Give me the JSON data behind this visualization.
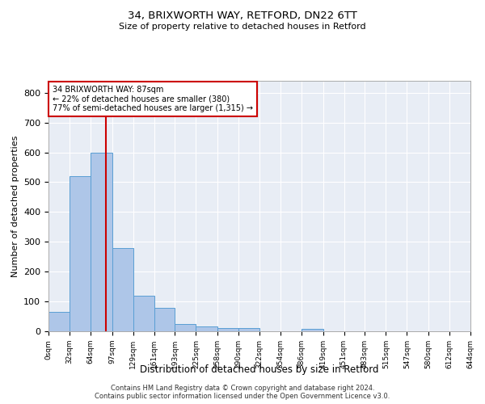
{
  "title1": "34, BRIXWORTH WAY, RETFORD, DN22 6TT",
  "title2": "Size of property relative to detached houses in Retford",
  "xlabel": "Distribution of detached houses by size in Retford",
  "ylabel": "Number of detached properties",
  "bin_edges": [
    0,
    32,
    64,
    97,
    129,
    161,
    193,
    225,
    258,
    290,
    322,
    354,
    386,
    419,
    451,
    483,
    515,
    547,
    580,
    612,
    644
  ],
  "bar_heights": [
    65,
    520,
    600,
    280,
    120,
    78,
    25,
    15,
    10,
    10,
    0,
    0,
    8,
    0,
    0,
    0,
    0,
    0,
    0,
    0
  ],
  "bar_color": "#aec6e8",
  "bar_edge_color": "#5a9fd4",
  "vline_x": 87,
  "vline_color": "#cc0000",
  "annotation_text": "34 BRIXWORTH WAY: 87sqm\n← 22% of detached houses are smaller (380)\n77% of semi-detached houses are larger (1,315) →",
  "annotation_box_color": "#ffffff",
  "annotation_box_edge": "#cc0000",
  "ylim": [
    0,
    840
  ],
  "yticks": [
    0,
    100,
    200,
    300,
    400,
    500,
    600,
    700,
    800
  ],
  "bg_color": "#e8edf5",
  "footer_line1": "Contains HM Land Registry data © Crown copyright and database right 2024.",
  "footer_line2": "Contains public sector information licensed under the Open Government Licence v3.0.",
  "tick_labels": [
    "0sqm",
    "32sqm",
    "64sqm",
    "97sqm",
    "129sqm",
    "161sqm",
    "193sqm",
    "225sqm",
    "258sqm",
    "290sqm",
    "322sqm",
    "354sqm",
    "386sqm",
    "419sqm",
    "451sqm",
    "483sqm",
    "515sqm",
    "547sqm",
    "580sqm",
    "612sqm",
    "644sqm"
  ]
}
